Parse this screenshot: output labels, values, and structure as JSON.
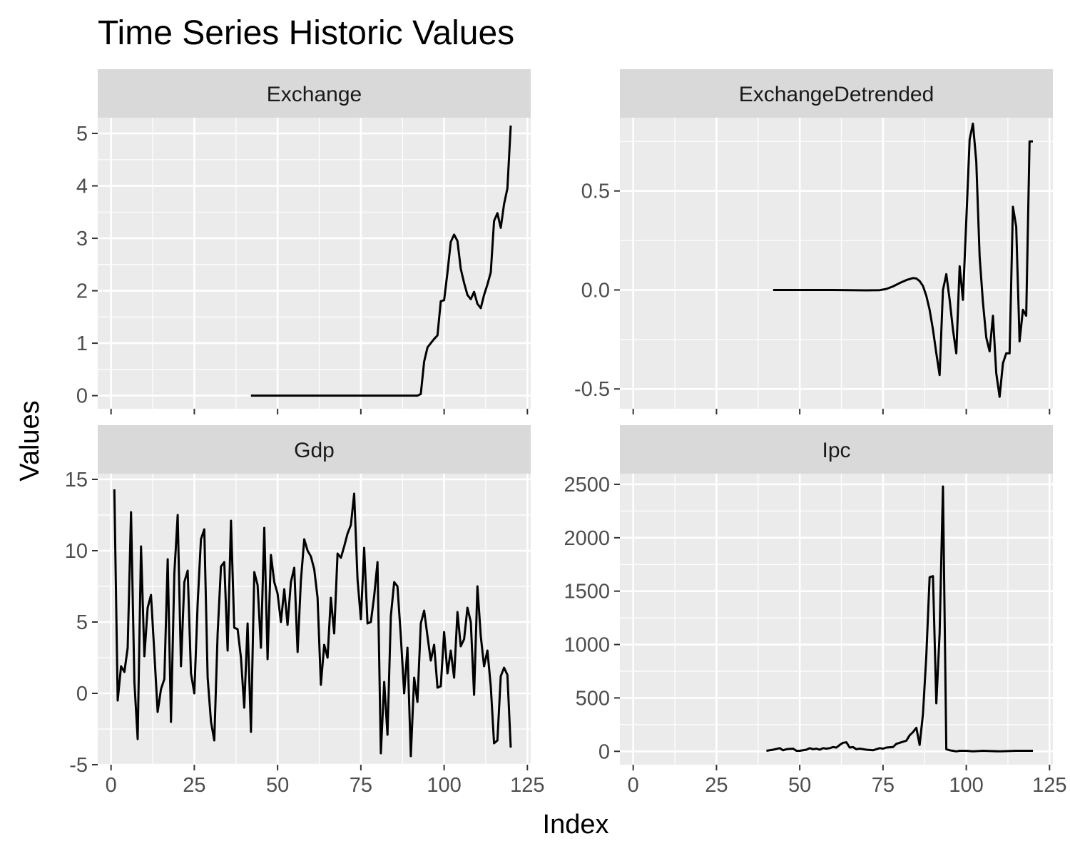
{
  "chart_data": {
    "type": "line",
    "title": "Time Series Historic Values",
    "xlabel": "Index",
    "ylabel": "Values",
    "grid": true,
    "facets": [
      {
        "name": "Exchange",
        "xlim": [
          -4,
          126
        ],
        "ylim": [
          -0.25,
          5.3
        ],
        "xticks": [
          0,
          25,
          50,
          75,
          100,
          125
        ],
        "yticks": [
          0,
          1,
          2,
          3,
          4,
          5
        ],
        "ytick_labels": [
          "0",
          "1",
          "2",
          "3",
          "4",
          "5"
        ],
        "x": [
          42,
          50,
          60,
          70,
          80,
          90,
          91,
          92,
          93,
          94,
          95,
          96,
          97,
          98,
          99,
          100,
          101,
          102,
          103,
          104,
          105,
          106,
          107,
          108,
          109,
          110,
          111,
          112,
          113,
          114,
          115,
          116,
          117,
          118,
          119,
          120
        ],
        "y": [
          0,
          0,
          0,
          0,
          0,
          0,
          0,
          0,
          0.03,
          0.65,
          0.92,
          1.0,
          1.08,
          1.15,
          1.8,
          1.82,
          2.35,
          2.93,
          3.07,
          2.95,
          2.42,
          2.15,
          1.92,
          1.84,
          1.98,
          1.75,
          1.67,
          1.92,
          2.12,
          2.35,
          3.33,
          3.48,
          3.2,
          3.65,
          3.95,
          5.15
        ]
      },
      {
        "name": "ExchangeDetrended",
        "xlim": [
          -4,
          126
        ],
        "ylim": [
          -0.6,
          0.87
        ],
        "xticks": [
          0,
          25,
          50,
          75,
          100,
          125
        ],
        "yticks": [
          -0.5,
          0.0,
          0.5
        ],
        "ytick_labels": [
          "-0.5",
          "0.0",
          "0.5"
        ],
        "x": [
          42,
          50,
          60,
          70,
          74,
          76,
          78,
          80,
          82,
          84,
          85,
          86,
          87,
          88,
          89,
          90,
          91,
          92,
          93,
          94,
          95,
          96,
          97,
          98,
          99,
          100,
          101,
          102,
          103,
          104,
          105,
          106,
          107,
          108,
          109,
          110,
          111,
          112,
          113,
          114,
          115,
          116,
          117,
          118,
          119,
          120
        ],
        "y": [
          0,
          0,
          0,
          -0.002,
          -0.001,
          0.005,
          0.018,
          0.035,
          0.05,
          0.06,
          0.058,
          0.045,
          0.02,
          -0.03,
          -0.1,
          -0.2,
          -0.32,
          -0.43,
          0.0,
          0.08,
          -0.05,
          -0.2,
          -0.32,
          0.12,
          -0.05,
          0.35,
          0.76,
          0.84,
          0.65,
          0.17,
          -0.06,
          -0.24,
          -0.31,
          -0.13,
          -0.42,
          -0.54,
          -0.37,
          -0.32,
          -0.32,
          0.42,
          0.32,
          -0.26,
          -0.1,
          -0.13,
          0.75,
          0.75
        ]
      },
      {
        "name": "Gdp",
        "xlim": [
          -4,
          126
        ],
        "ylim": [
          -5,
          15.4
        ],
        "xticks": [
          0,
          25,
          50,
          75,
          100,
          125
        ],
        "yticks": [
          -5,
          0,
          5,
          10,
          15
        ],
        "ytick_labels": [
          "-5",
          "0",
          "5",
          "10",
          "15"
        ],
        "x": [
          1,
          2,
          3,
          4,
          5,
          6,
          7,
          8,
          9,
          10,
          11,
          12,
          13,
          14,
          15,
          16,
          17,
          18,
          19,
          20,
          21,
          22,
          23,
          24,
          25,
          26,
          27,
          28,
          29,
          30,
          31,
          32,
          33,
          34,
          35,
          36,
          37,
          38,
          39,
          40,
          41,
          42,
          43,
          44,
          45,
          46,
          47,
          48,
          49,
          50,
          51,
          52,
          53,
          54,
          55,
          56,
          57,
          58,
          59,
          60,
          61,
          62,
          63,
          64,
          65,
          66,
          67,
          68,
          69,
          70,
          71,
          72,
          73,
          74,
          75,
          76,
          77,
          78,
          79,
          80,
          81,
          82,
          83,
          84,
          85,
          86,
          87,
          88,
          89,
          90,
          91,
          92,
          93,
          94,
          95,
          96,
          97,
          98,
          99,
          100,
          101,
          102,
          103,
          104,
          105,
          106,
          107,
          108,
          109,
          110,
          111,
          112,
          113,
          114,
          115,
          116,
          117,
          118,
          119,
          120
        ],
        "y": [
          14.3,
          -0.5,
          1.9,
          1.5,
          3.2,
          12.7,
          0.8,
          -3.2,
          10.3,
          2.6,
          6.0,
          6.9,
          2.8,
          -1.3,
          0.3,
          1.0,
          9.4,
          -2.0,
          8.4,
          12.5,
          1.9,
          7.8,
          8.6,
          1.4,
          0.0,
          6.3,
          10.8,
          11.5,
          1.1,
          -2.0,
          -3.3,
          4.2,
          8.9,
          9.2,
          3.0,
          12.1,
          4.6,
          4.5,
          2.5,
          -1.0,
          4.9,
          -2.7,
          8.5,
          7.6,
          3.2,
          11.6,
          2.4,
          9.7,
          7.8,
          7.0,
          5.0,
          7.3,
          4.8,
          7.8,
          8.8,
          2.9,
          7.9,
          10.8,
          10.0,
          9.6,
          8.7,
          6.7,
          0.6,
          3.4,
          2.5,
          6.7,
          4.2,
          9.8,
          9.5,
          10.3,
          11.2,
          11.8,
          14.0,
          8.0,
          5.2,
          10.2,
          4.9,
          5.0,
          6.8,
          9.2,
          -4.2,
          0.8,
          -2.9,
          5.4,
          7.8,
          7.5,
          4.0,
          0.0,
          3.2,
          -4.4,
          1.1,
          -0.6,
          4.9,
          5.8,
          4.0,
          2.3,
          3.4,
          0.4,
          0.5,
          4.3,
          1.4,
          3.0,
          1.1,
          5.7,
          3.3,
          3.8,
          6.0,
          5.0,
          -0.1,
          7.5,
          4.0,
          1.9,
          3.0,
          0.5,
          -3.5,
          -3.3,
          1.2,
          1.8,
          1.3,
          -3.8
        ]
      },
      {
        "name": "Ipc",
        "xlim": [
          -4,
          126
        ],
        "ylim": [
          -125,
          2600
        ],
        "xticks": [
          0,
          25,
          50,
          75,
          100,
          125
        ],
        "yticks": [
          0,
          500,
          1000,
          1500,
          2000,
          2500
        ],
        "ytick_labels": [
          "0",
          "500",
          "1000",
          "1500",
          "2000",
          "2500"
        ],
        "x": [
          40,
          42,
          44,
          45,
          46,
          48,
          49,
          50,
          52,
          53,
          54,
          55,
          56,
          57,
          58,
          59,
          60,
          61,
          62,
          63,
          64,
          65,
          66,
          67,
          68,
          70,
          72,
          74,
          75,
          76,
          78,
          79,
          80,
          81,
          82,
          83,
          84,
          85,
          86,
          87,
          88,
          89,
          90,
          91,
          92,
          93,
          94,
          95,
          96,
          97,
          98,
          100,
          102,
          105,
          110,
          115,
          120
        ],
        "y": [
          5,
          15,
          30,
          10,
          20,
          25,
          5,
          5,
          15,
          30,
          20,
          25,
          15,
          30,
          25,
          30,
          40,
          35,
          60,
          80,
          85,
          35,
          40,
          20,
          25,
          15,
          10,
          30,
          25,
          35,
          40,
          70,
          80,
          90,
          100,
          150,
          180,
          220,
          60,
          350,
          900,
          1630,
          1640,
          450,
          1100,
          2480,
          20,
          10,
          5,
          0,
          5,
          5,
          0,
          5,
          0,
          5,
          5
        ]
      }
    ]
  }
}
